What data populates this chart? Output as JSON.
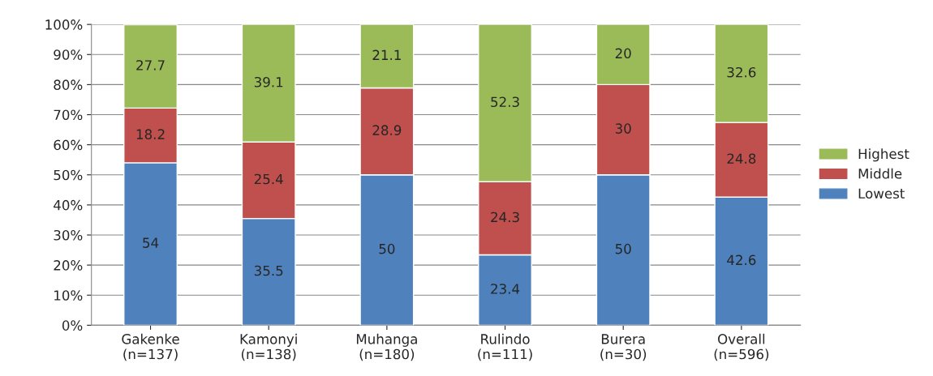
{
  "chart_data": {
    "type": "bar",
    "stacked": true,
    "categories": [
      "Gakenke\n(n=137)",
      "Kamonyi\n(n=138)",
      "Muhanga\n(n=180)",
      "Rulindo\n(n=111)",
      "Burera\n(n=30)",
      "Overall\n(n=596)"
    ],
    "series": [
      {
        "name": "Lowest",
        "color": "#4f81bd",
        "values": [
          54,
          35.5,
          50,
          23.4,
          50,
          42.6
        ]
      },
      {
        "name": "Middle",
        "color": "#c0504d",
        "values": [
          18.2,
          25.4,
          28.9,
          24.3,
          30,
          24.8
        ]
      },
      {
        "name": "Highest",
        "color": "#9bbb59",
        "values": [
          27.7,
          39.1,
          21.1,
          52.3,
          20,
          32.6
        ]
      }
    ],
    "ylim": [
      0,
      100
    ],
    "yticks": [
      {
        "value": 0,
        "label": "0%"
      },
      {
        "value": 10,
        "label": "10%"
      },
      {
        "value": 20,
        "label": "20%"
      },
      {
        "value": 30,
        "label": "30%"
      },
      {
        "value": 40,
        "label": "40%"
      },
      {
        "value": 50,
        "label": "50%"
      },
      {
        "value": 60,
        "label": "60%"
      },
      {
        "value": 70,
        "label": "70%"
      },
      {
        "value": 80,
        "label": "80%"
      },
      {
        "value": 90,
        "label": "90%"
      },
      {
        "value": 100,
        "label": "100%"
      }
    ],
    "grid": "y",
    "legend": "right",
    "data_labels": true
  }
}
